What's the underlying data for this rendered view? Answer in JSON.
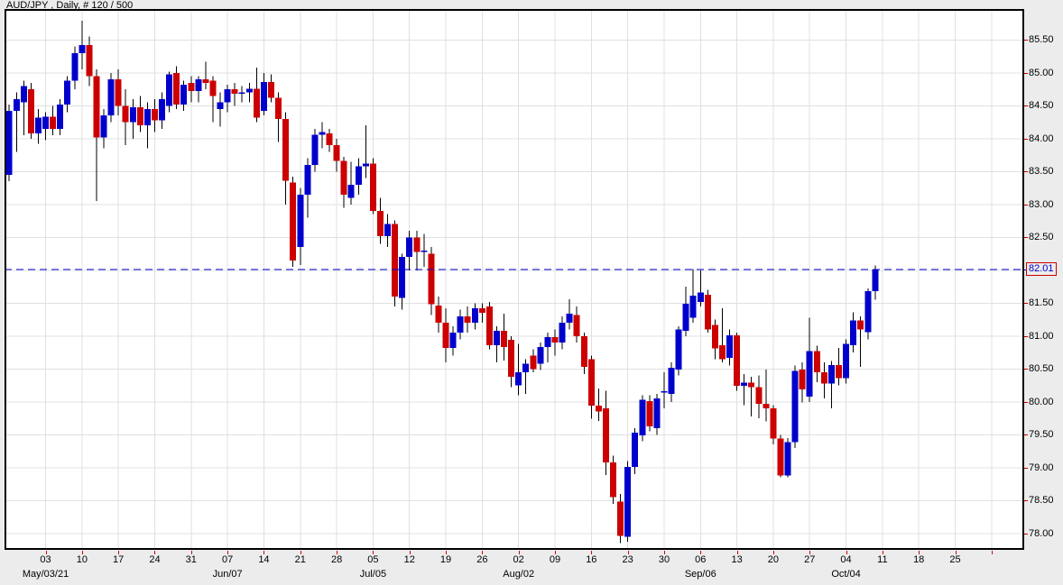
{
  "title": "AUD/JPY , Daily, # 120 / 500",
  "chart_data": {
    "type": "candlestick",
    "symbol": "AUD/JPY",
    "timeframe": "Daily",
    "bars_counter": "# 120 / 500",
    "current_price": "82.01",
    "price_top": 85.97,
    "price_bottom": 77.75,
    "grid_on": true,
    "colors": {
      "up": "#0000cc",
      "down": "#cc0000",
      "wick": "#000000",
      "grid": "#e0e0e0",
      "dashed_line": "#0000cc",
      "tick": "#cc0000",
      "axis_text": "#000000",
      "price_text": "#0000cc",
      "price_box_border": "#cc0000",
      "plot_bg": "#ffffff",
      "page_bg": "#ececec",
      "border": "#000000"
    },
    "y_axis_labels": [
      85.5,
      85.0,
      84.5,
      84.0,
      83.5,
      83.0,
      82.5,
      81.5,
      81.0,
      80.5,
      80.0,
      79.5,
      79.0,
      78.5,
      78.0
    ],
    "y_gridlines": [
      85.5,
      85.0,
      84.5,
      84.0,
      83.5,
      83.0,
      82.5,
      82.0,
      81.5,
      81.0,
      80.5,
      80.0,
      79.5,
      79.0,
      78.5,
      78.0
    ],
    "x_week_labels": [
      "03",
      "10",
      "17",
      "24",
      "31",
      "07",
      "14",
      "21",
      "28",
      "05",
      "12",
      "19",
      "26",
      "02",
      "09",
      "16",
      "23",
      "30",
      "06",
      "13",
      "20",
      "27",
      "04",
      "11",
      "18",
      "25"
    ],
    "x_month_labels": [
      {
        "week": 0,
        "label": "May/03/21"
      },
      {
        "week": 5,
        "label": "Jun/07"
      },
      {
        "week": 9,
        "label": "Jul/05"
      },
      {
        "week": 13,
        "label": "Aug/02"
      },
      {
        "week": 18,
        "label": "Sep/06"
      },
      {
        "week": 22,
        "label": "Oct/04"
      }
    ],
    "candles": [
      {
        "d": "Apr 26",
        "o": 83.45,
        "h": 84.52,
        "l": 83.35,
        "c": 84.42
      },
      {
        "d": "Apr 27",
        "o": 84.42,
        "h": 84.7,
        "l": 83.8,
        "c": 84.6
      },
      {
        "d": "Apr 28",
        "o": 84.55,
        "h": 84.88,
        "l": 84.05,
        "c": 84.8
      },
      {
        "d": "Apr 29",
        "o": 84.75,
        "h": 84.85,
        "l": 84.0,
        "c": 84.08
      },
      {
        "d": "Apr 30",
        "o": 84.08,
        "h": 84.45,
        "l": 83.92,
        "c": 84.32
      },
      {
        "d": "May 03",
        "o": 84.15,
        "h": 84.4,
        "l": 83.98,
        "c": 84.33
      },
      {
        "d": "May 04",
        "o": 84.33,
        "h": 84.5,
        "l": 84.05,
        "c": 84.15
      },
      {
        "d": "May 05",
        "o": 84.15,
        "h": 84.6,
        "l": 84.05,
        "c": 84.52
      },
      {
        "d": "May 06",
        "o": 84.52,
        "h": 84.95,
        "l": 84.4,
        "c": 84.88
      },
      {
        "d": "May 07",
        "o": 84.88,
        "h": 85.4,
        "l": 84.75,
        "c": 85.3
      },
      {
        "d": "May 10",
        "o": 85.3,
        "h": 85.79,
        "l": 85.05,
        "c": 85.42
      },
      {
        "d": "May 11",
        "o": 85.42,
        "h": 85.55,
        "l": 84.8,
        "c": 84.95
      },
      {
        "d": "May 12",
        "o": 84.95,
        "h": 85.05,
        "l": 83.05,
        "c": 84.02
      },
      {
        "d": "May 13",
        "o": 84.02,
        "h": 84.45,
        "l": 83.85,
        "c": 84.35
      },
      {
        "d": "May 14",
        "o": 84.35,
        "h": 85.0,
        "l": 84.25,
        "c": 84.9
      },
      {
        "d": "May 17",
        "o": 84.9,
        "h": 85.05,
        "l": 84.35,
        "c": 84.5
      },
      {
        "d": "May 18",
        "o": 84.5,
        "h": 84.75,
        "l": 83.9,
        "c": 84.25
      },
      {
        "d": "May 19",
        "o": 84.25,
        "h": 84.6,
        "l": 84.0,
        "c": 84.48
      },
      {
        "d": "May 20",
        "o": 84.48,
        "h": 84.65,
        "l": 84.1,
        "c": 84.2
      },
      {
        "d": "May 21",
        "o": 84.2,
        "h": 84.55,
        "l": 83.85,
        "c": 84.45
      },
      {
        "d": "May 24",
        "o": 84.45,
        "h": 84.6,
        "l": 84.1,
        "c": 84.28
      },
      {
        "d": "May 25",
        "o": 84.28,
        "h": 84.7,
        "l": 84.15,
        "c": 84.6
      },
      {
        "d": "May 26",
        "o": 84.5,
        "h": 85.02,
        "l": 84.4,
        "c": 84.98
      },
      {
        "d": "May 27",
        "o": 85.0,
        "h": 85.1,
        "l": 84.45,
        "c": 84.52
      },
      {
        "d": "May 28",
        "o": 84.52,
        "h": 84.88,
        "l": 84.42,
        "c": 84.82
      },
      {
        "d": "May 31",
        "o": 84.85,
        "h": 84.95,
        "l": 84.55,
        "c": 84.72
      },
      {
        "d": "Jun 01",
        "o": 84.72,
        "h": 84.95,
        "l": 84.55,
        "c": 84.9
      },
      {
        "d": "Jun 02",
        "o": 84.9,
        "h": 85.17,
        "l": 84.75,
        "c": 84.85
      },
      {
        "d": "Jun 03",
        "o": 84.88,
        "h": 84.95,
        "l": 84.25,
        "c": 84.65
      },
      {
        "d": "Jun 04",
        "o": 84.45,
        "h": 84.7,
        "l": 84.18,
        "c": 84.55
      },
      {
        "d": "Jun 07",
        "o": 84.55,
        "h": 84.82,
        "l": 84.4,
        "c": 84.75
      },
      {
        "d": "Jun 08",
        "o": 84.75,
        "h": 84.85,
        "l": 84.5,
        "c": 84.68
      },
      {
        "d": "Jun 09",
        "o": 84.68,
        "h": 84.8,
        "l": 84.55,
        "c": 84.7
      },
      {
        "d": "Jun 10",
        "o": 84.7,
        "h": 84.85,
        "l": 84.55,
        "c": 84.76
      },
      {
        "d": "Jun 11",
        "o": 84.76,
        "h": 85.08,
        "l": 84.25,
        "c": 84.32
      },
      {
        "d": "Jun 14",
        "o": 84.42,
        "h": 85.0,
        "l": 84.35,
        "c": 84.86
      },
      {
        "d": "Jun 15",
        "o": 84.86,
        "h": 84.98,
        "l": 84.55,
        "c": 84.62
      },
      {
        "d": "Jun 16",
        "o": 84.62,
        "h": 84.7,
        "l": 83.95,
        "c": 84.3
      },
      {
        "d": "Jun 17",
        "o": 84.3,
        "h": 84.4,
        "l": 83.0,
        "c": 83.36
      },
      {
        "d": "Jun 18",
        "o": 83.33,
        "h": 83.42,
        "l": 82.05,
        "c": 82.15
      },
      {
        "d": "Jun 21",
        "o": 82.35,
        "h": 83.25,
        "l": 82.08,
        "c": 83.15
      },
      {
        "d": "Jun 22",
        "o": 83.15,
        "h": 83.7,
        "l": 82.8,
        "c": 83.6
      },
      {
        "d": "Jun 23",
        "o": 83.6,
        "h": 84.15,
        "l": 83.5,
        "c": 84.06
      },
      {
        "d": "Jun 24",
        "o": 84.06,
        "h": 84.25,
        "l": 83.85,
        "c": 84.1
      },
      {
        "d": "Jun 25",
        "o": 84.08,
        "h": 84.15,
        "l": 83.8,
        "c": 83.9
      },
      {
        "d": "Jun 28",
        "o": 83.9,
        "h": 84.0,
        "l": 83.5,
        "c": 83.66
      },
      {
        "d": "Jun 29",
        "o": 83.66,
        "h": 83.72,
        "l": 82.95,
        "c": 83.15
      },
      {
        "d": "Jun 30",
        "o": 83.1,
        "h": 83.65,
        "l": 83.0,
        "c": 83.3
      },
      {
        "d": "Jul 01",
        "o": 83.3,
        "h": 83.7,
        "l": 83.15,
        "c": 83.58
      },
      {
        "d": "Jul 02",
        "o": 83.58,
        "h": 84.2,
        "l": 83.4,
        "c": 83.62
      },
      {
        "d": "Jul 05",
        "o": 83.62,
        "h": 83.7,
        "l": 82.85,
        "c": 82.9
      },
      {
        "d": "Jul 06",
        "o": 82.9,
        "h": 83.1,
        "l": 82.4,
        "c": 82.52
      },
      {
        "d": "Jul 07",
        "o": 82.52,
        "h": 82.85,
        "l": 82.35,
        "c": 82.7
      },
      {
        "d": "Jul 08",
        "o": 82.7,
        "h": 82.76,
        "l": 81.45,
        "c": 81.6
      },
      {
        "d": "Jul 09",
        "o": 81.58,
        "h": 82.25,
        "l": 81.4,
        "c": 82.2
      },
      {
        "d": "Jul 12",
        "o": 82.2,
        "h": 82.6,
        "l": 82.0,
        "c": 82.5
      },
      {
        "d": "Jul 13",
        "o": 82.5,
        "h": 82.6,
        "l": 82.0,
        "c": 82.28
      },
      {
        "d": "Jul 14",
        "o": 82.28,
        "h": 82.55,
        "l": 82.05,
        "c": 82.3
      },
      {
        "d": "Jul 15",
        "o": 82.25,
        "h": 82.35,
        "l": 81.32,
        "c": 81.48
      },
      {
        "d": "Jul 16",
        "o": 81.46,
        "h": 81.6,
        "l": 81.05,
        "c": 81.2
      },
      {
        "d": "Jul 19",
        "o": 81.2,
        "h": 81.42,
        "l": 80.6,
        "c": 80.82
      },
      {
        "d": "Jul 20",
        "o": 80.82,
        "h": 81.15,
        "l": 80.7,
        "c": 81.05
      },
      {
        "d": "Jul 21",
        "o": 81.05,
        "h": 81.4,
        "l": 80.95,
        "c": 81.3
      },
      {
        "d": "Jul 22",
        "o": 81.3,
        "h": 81.45,
        "l": 81.05,
        "c": 81.2
      },
      {
        "d": "Jul 23",
        "o": 81.2,
        "h": 81.5,
        "l": 81.1,
        "c": 81.42
      },
      {
        "d": "Jul 26",
        "o": 81.42,
        "h": 81.5,
        "l": 81.2,
        "c": 81.35
      },
      {
        "d": "Jul 27",
        "o": 81.45,
        "h": 81.52,
        "l": 80.8,
        "c": 80.86
      },
      {
        "d": "Jul 28",
        "o": 80.86,
        "h": 81.15,
        "l": 80.6,
        "c": 81.08
      },
      {
        "d": "Jul 29",
        "o": 81.08,
        "h": 81.34,
        "l": 80.63,
        "c": 80.83
      },
      {
        "d": "Jul 30",
        "o": 80.94,
        "h": 81.0,
        "l": 80.22,
        "c": 80.38
      },
      {
        "d": "Aug 02",
        "o": 80.25,
        "h": 80.88,
        "l": 80.1,
        "c": 80.45
      },
      {
        "d": "Aug 03",
        "o": 80.45,
        "h": 80.65,
        "l": 80.12,
        "c": 80.58
      },
      {
        "d": "Aug 04",
        "o": 80.7,
        "h": 80.8,
        "l": 80.45,
        "c": 80.5
      },
      {
        "d": "Aug 05",
        "o": 80.58,
        "h": 80.9,
        "l": 80.48,
        "c": 80.83
      },
      {
        "d": "Aug 06",
        "o": 80.83,
        "h": 81.05,
        "l": 80.6,
        "c": 80.98
      },
      {
        "d": "Aug 09",
        "o": 80.98,
        "h": 81.1,
        "l": 80.7,
        "c": 80.9
      },
      {
        "d": "Aug 10",
        "o": 80.9,
        "h": 81.3,
        "l": 80.8,
        "c": 81.2
      },
      {
        "d": "Aug 11",
        "o": 81.2,
        "h": 81.56,
        "l": 81.1,
        "c": 81.34
      },
      {
        "d": "Aug 12",
        "o": 81.32,
        "h": 81.45,
        "l": 80.9,
        "c": 81.0
      },
      {
        "d": "Aug 13",
        "o": 81.0,
        "h": 81.05,
        "l": 80.42,
        "c": 80.53
      },
      {
        "d": "Aug 16",
        "o": 80.65,
        "h": 80.7,
        "l": 79.74,
        "c": 79.94
      },
      {
        "d": "Aug 17",
        "o": 79.94,
        "h": 80.2,
        "l": 79.71,
        "c": 79.85
      },
      {
        "d": "Aug 18",
        "o": 79.9,
        "h": 80.17,
        "l": 78.89,
        "c": 79.08
      },
      {
        "d": "Aug 19",
        "o": 79.08,
        "h": 79.18,
        "l": 78.45,
        "c": 78.55
      },
      {
        "d": "Aug 20",
        "o": 78.48,
        "h": 78.6,
        "l": 77.85,
        "c": 77.96
      },
      {
        "d": "Aug 23",
        "o": 77.95,
        "h": 79.1,
        "l": 77.87,
        "c": 79.01
      },
      {
        "d": "Aug 24",
        "o": 79.01,
        "h": 79.6,
        "l": 78.9,
        "c": 79.53
      },
      {
        "d": "Aug 25",
        "o": 79.49,
        "h": 80.1,
        "l": 79.4,
        "c": 80.03
      },
      {
        "d": "Aug 26",
        "o": 80.01,
        "h": 80.1,
        "l": 79.55,
        "c": 79.63
      },
      {
        "d": "Aug 27",
        "o": 79.6,
        "h": 80.12,
        "l": 79.5,
        "c": 80.05
      },
      {
        "d": "Aug 30",
        "o": 80.15,
        "h": 80.45,
        "l": 79.9,
        "c": 80.16
      },
      {
        "d": "Aug 31",
        "o": 80.12,
        "h": 80.6,
        "l": 80.0,
        "c": 80.52
      },
      {
        "d": "Sep 01",
        "o": 80.49,
        "h": 81.15,
        "l": 80.4,
        "c": 81.1
      },
      {
        "d": "Sep 02",
        "o": 81.08,
        "h": 81.75,
        "l": 81.0,
        "c": 81.49
      },
      {
        "d": "Sep 03",
        "o": 81.28,
        "h": 82.02,
        "l": 81.2,
        "c": 81.61
      },
      {
        "d": "Sep 06",
        "o": 81.52,
        "h": 82.0,
        "l": 81.45,
        "c": 81.66
      },
      {
        "d": "Sep 07",
        "o": 81.63,
        "h": 81.7,
        "l": 81.05,
        "c": 81.1
      },
      {
        "d": "Sep 08",
        "o": 81.17,
        "h": 81.25,
        "l": 80.65,
        "c": 80.81
      },
      {
        "d": "Sep 09",
        "o": 80.86,
        "h": 81.42,
        "l": 80.6,
        "c": 80.65
      },
      {
        "d": "Sep 10",
        "o": 80.67,
        "h": 81.1,
        "l": 80.55,
        "c": 81.01
      },
      {
        "d": "Sep 13",
        "o": 81.01,
        "h": 81.05,
        "l": 80.17,
        "c": 80.24
      },
      {
        "d": "Sep 14",
        "o": 80.24,
        "h": 80.42,
        "l": 79.95,
        "c": 80.29
      },
      {
        "d": "Sep 15",
        "o": 80.29,
        "h": 80.38,
        "l": 79.78,
        "c": 80.22
      },
      {
        "d": "Sep 16",
        "o": 80.22,
        "h": 80.4,
        "l": 79.75,
        "c": 79.97
      },
      {
        "d": "Sep 17",
        "o": 79.97,
        "h": 80.49,
        "l": 79.7,
        "c": 79.9
      },
      {
        "d": "Sep 20",
        "o": 79.9,
        "h": 79.95,
        "l": 79.35,
        "c": 79.44
      },
      {
        "d": "Sep 21",
        "o": 79.44,
        "h": 79.5,
        "l": 78.85,
        "c": 78.88
      },
      {
        "d": "Sep 22",
        "o": 78.88,
        "h": 79.45,
        "l": 78.85,
        "c": 79.39
      },
      {
        "d": "Sep 23",
        "o": 79.39,
        "h": 80.55,
        "l": 79.3,
        "c": 80.47
      },
      {
        "d": "Sep 24",
        "o": 80.49,
        "h": 80.6,
        "l": 79.99,
        "c": 80.19
      },
      {
        "d": "Sep 27",
        "o": 80.08,
        "h": 81.28,
        "l": 80.0,
        "c": 80.77
      },
      {
        "d": "Sep 28",
        "o": 80.77,
        "h": 80.85,
        "l": 80.3,
        "c": 80.45
      },
      {
        "d": "Sep 29",
        "o": 80.45,
        "h": 80.6,
        "l": 80.05,
        "c": 80.28
      },
      {
        "d": "Sep 30",
        "o": 80.28,
        "h": 80.62,
        "l": 79.9,
        "c": 80.56
      },
      {
        "d": "Oct 01",
        "o": 80.56,
        "h": 80.82,
        "l": 80.25,
        "c": 80.36
      },
      {
        "d": "Oct 04",
        "o": 80.36,
        "h": 80.95,
        "l": 80.28,
        "c": 80.88
      },
      {
        "d": "Oct 05",
        "o": 80.86,
        "h": 81.36,
        "l": 80.75,
        "c": 81.24
      },
      {
        "d": "Oct 06",
        "o": 81.24,
        "h": 81.3,
        "l": 80.53,
        "c": 81.1
      },
      {
        "d": "Oct 07",
        "o": 81.06,
        "h": 81.72,
        "l": 80.95,
        "c": 81.68
      },
      {
        "d": "Oct 08",
        "o": 81.68,
        "h": 82.07,
        "l": 81.55,
        "c": 82.01
      }
    ]
  }
}
